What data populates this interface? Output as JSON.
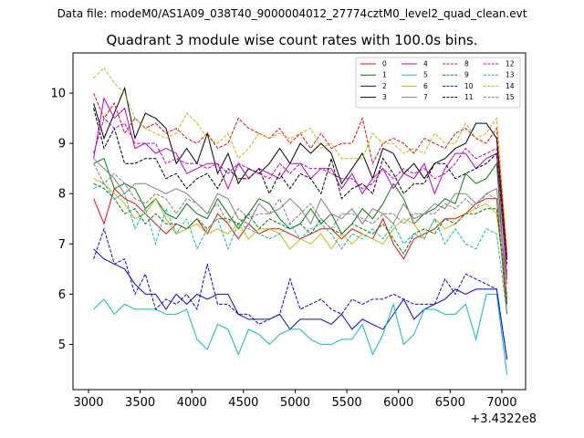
{
  "header": {
    "data_file_label": "Data file: modeM0/AS1A09_038T40_9000004012_27774cztM0_level2_quad_clean.evt"
  },
  "chart_data": {
    "type": "line",
    "title": "Quadrant 3 module wise count rates with 100.0s bins.",
    "xlabel": "",
    "ylabel": "",
    "x_offset_label": "+3.4322e8",
    "xlim": [
      2850,
      7230
    ],
    "ylim": [
      4.1,
      10.8
    ],
    "x_ticks": [
      3000,
      3500,
      4000,
      4500,
      5000,
      5500,
      6000,
      6500,
      7000
    ],
    "y_ticks": [
      5,
      6,
      7,
      8,
      9,
      10
    ],
    "x": [
      3050,
      3150,
      3250,
      3350,
      3450,
      3550,
      3650,
      3750,
      3850,
      3950,
      4050,
      4150,
      4250,
      4350,
      4450,
      4550,
      4650,
      4750,
      4850,
      4950,
      5050,
      5150,
      5250,
      5350,
      5450,
      5550,
      5650,
      5750,
      5850,
      5950,
      6050,
      6150,
      6250,
      6350,
      6450,
      6550,
      6650,
      6750,
      6850,
      6950,
      7050
    ],
    "legend_position": "top-right",
    "series": [
      {
        "name": "0",
        "color": "#ff0000",
        "dash": "solid",
        "values": [
          7.9,
          7.4,
          8.1,
          7.9,
          7.8,
          7.6,
          7.4,
          7.2,
          7.4,
          7.3,
          7.5,
          7.2,
          7.6,
          7.4,
          7.1,
          7.4,
          7.2,
          7.3,
          7.3,
          7.2,
          7.1,
          7.2,
          7.3,
          7.3,
          7.1,
          7.3,
          7.2,
          7.1,
          7.5,
          7.0,
          6.7,
          7.1,
          7.2,
          7.3,
          7.5,
          7.5,
          7.6,
          7.8,
          7.9,
          7.9,
          5.6
        ]
      },
      {
        "name": "1",
        "color": "#008000",
        "dash": "solid",
        "values": [
          8.6,
          8.7,
          8.1,
          8.2,
          8.1,
          7.7,
          7.9,
          7.6,
          7.5,
          7.8,
          7.6,
          7.5,
          7.9,
          7.6,
          7.3,
          7.6,
          7.9,
          7.8,
          7.5,
          7.3,
          7.4,
          7.7,
          7.4,
          7.6,
          7.2,
          7.4,
          7.7,
          7.5,
          7.8,
          8.2,
          7.9,
          7.4,
          7.6,
          7.7,
          7.9,
          7.8,
          8.4,
          8.2,
          8.3,
          8.6,
          5.8
        ]
      },
      {
        "name": "2",
        "color": "#0000ff",
        "dash": "solid",
        "values": [
          6.9,
          6.7,
          6.6,
          6.5,
          6.2,
          6.0,
          6.0,
          5.7,
          6.0,
          5.8,
          6.0,
          5.9,
          6.0,
          6.0,
          5.6,
          5.5,
          5.5,
          5.5,
          5.6,
          5.3,
          5.5,
          5.5,
          5.5,
          5.4,
          5.6,
          5.3,
          5.5,
          5.4,
          5.3,
          5.6,
          5.9,
          5.5,
          5.7,
          5.8,
          5.9,
          6.1,
          6.0,
          6.1,
          6.1,
          6.1,
          4.7
        ]
      },
      {
        "name": "3",
        "color": "#000000",
        "dash": "solid",
        "values": [
          9.8,
          9.1,
          9.6,
          10.1,
          9.1,
          9.6,
          9.5,
          9.3,
          8.6,
          8.9,
          8.6,
          9.2,
          8.4,
          8.8,
          8.2,
          8.5,
          8.4,
          8.6,
          8.9,
          8.6,
          9.0,
          8.8,
          9.0,
          8.8,
          8.2,
          8.5,
          8.8,
          8.3,
          8.9,
          8.8,
          8.4,
          8.6,
          8.3,
          8.6,
          8.7,
          8.9,
          9.0,
          9.4,
          9.4,
          9.1,
          6.7
        ]
      },
      {
        "name": "4",
        "color": "#c000c0",
        "dash": "solid",
        "values": [
          8.7,
          9.9,
          9.5,
          9.7,
          8.9,
          9.0,
          8.8,
          8.9,
          8.8,
          8.4,
          8.5,
          8.6,
          8.6,
          8.1,
          8.6,
          8.3,
          8.5,
          8.4,
          8.3,
          8.6,
          8.6,
          8.3,
          8.5,
          8.5,
          8.1,
          8.4,
          8.0,
          8.3,
          8.5,
          8.1,
          8.4,
          8.3,
          8.6,
          8.0,
          8.5,
          8.8,
          8.8,
          8.5,
          8.7,
          8.8,
          6.3
        ]
      },
      {
        "name": "5",
        "color": "#00bfbf",
        "dash": "solid",
        "values": [
          5.7,
          5.9,
          5.6,
          5.8,
          5.7,
          5.7,
          5.7,
          5.6,
          5.6,
          5.7,
          5.1,
          4.9,
          5.4,
          5.3,
          4.8,
          5.3,
          5.2,
          5.0,
          5.2,
          5.3,
          5.3,
          5.1,
          5.0,
          5.0,
          5.1,
          5.1,
          5.4,
          4.8,
          5.2,
          5.8,
          5.0,
          5.2,
          5.7,
          5.7,
          5.6,
          5.6,
          5.8,
          5.1,
          6.0,
          6.0,
          4.4
        ]
      },
      {
        "name": "6",
        "color": "#bfbf00",
        "dash": "solid",
        "values": [
          8.3,
          8.2,
          8.0,
          7.8,
          7.5,
          7.6,
          7.9,
          7.5,
          7.2,
          7.3,
          7.4,
          7.2,
          7.3,
          7.2,
          7.4,
          7.1,
          7.3,
          7.3,
          7.2,
          6.9,
          7.1,
          7.0,
          7.2,
          6.9,
          7.2,
          7.0,
          7.2,
          7.1,
          7.0,
          7.3,
          7.5,
          7.4,
          7.1,
          7.5,
          7.3,
          7.4,
          7.6,
          7.7,
          7.8,
          7.6,
          6.0
        ]
      },
      {
        "name": "7",
        "color": "#808080",
        "dash": "solid",
        "values": [
          8.7,
          8.5,
          8.3,
          8.0,
          8.2,
          8.2,
          8.1,
          8.0,
          8.1,
          8.0,
          7.8,
          7.6,
          8.0,
          7.9,
          7.5,
          7.4,
          7.8,
          7.6,
          7.7,
          7.9,
          7.7,
          7.4,
          7.9,
          7.6,
          7.5,
          7.7,
          7.4,
          7.7,
          7.6,
          7.4,
          7.8,
          7.5,
          7.6,
          7.8,
          7.7,
          8.0,
          8.0,
          7.8,
          8.0,
          8.1,
          6.2
        ]
      },
      {
        "name": "8",
        "color": "#ff0000",
        "dash": "dashed",
        "values": [
          10.0,
          9.5,
          9.8,
          9.2,
          9.5,
          9.3,
          9.4,
          9.2,
          9.3,
          9.1,
          9.0,
          9.2,
          8.9,
          9.0,
          9.5,
          9.3,
          9.2,
          9.1,
          9.3,
          9.0,
          9.2,
          8.9,
          9.2,
          8.9,
          9.0,
          9.0,
          9.5,
          8.6,
          9.0,
          9.1,
          9.0,
          8.8,
          9.1,
          9.0,
          8.9,
          9.2,
          9.3,
          9.1,
          9.0,
          9.3,
          6.8
        ]
      },
      {
        "name": "9",
        "color": "#008000",
        "dash": "dashed",
        "values": [
          8.2,
          8.1,
          7.9,
          7.6,
          7.7,
          7.4,
          7.6,
          7.4,
          7.4,
          7.3,
          7.5,
          7.3,
          7.5,
          7.5,
          7.4,
          7.6,
          7.3,
          7.5,
          7.4,
          7.3,
          7.4,
          7.2,
          7.5,
          7.3,
          7.2,
          7.4,
          7.3,
          7.2,
          7.4,
          7.1,
          6.8,
          7.2,
          7.3,
          7.2,
          7.5,
          7.4,
          7.6,
          7.6,
          7.7,
          7.7,
          5.9
        ]
      },
      {
        "name": "10",
        "color": "#0000ff",
        "dash": "dashed",
        "values": [
          6.7,
          7.3,
          6.6,
          6.7,
          6.0,
          6.4,
          5.7,
          5.9,
          5.8,
          6.0,
          5.7,
          6.6,
          5.8,
          5.8,
          5.6,
          5.6,
          5.4,
          5.5,
          5.6,
          6.3,
          5.7,
          5.8,
          5.9,
          5.7,
          5.6,
          5.9,
          5.8,
          5.9,
          5.9,
          6.0,
          5.9,
          5.8,
          5.8,
          5.8,
          6.3,
          6.0,
          6.4,
          6.3,
          6.2,
          6.1,
          4.7
        ]
      },
      {
        "name": "11",
        "color": "#000000",
        "dash": "dashed",
        "values": [
          9.7,
          8.9,
          9.3,
          8.6,
          8.6,
          8.7,
          8.7,
          8.3,
          8.4,
          8.1,
          8.3,
          8.4,
          8.1,
          8.5,
          8.3,
          8.3,
          8.5,
          8.0,
          8.4,
          8.1,
          8.4,
          8.3,
          8.0,
          8.7,
          7.9,
          8.1,
          8.2,
          8.0,
          8.7,
          8.4,
          8.0,
          8.2,
          8.2,
          8.6,
          8.6,
          8.3,
          8.4,
          8.5,
          8.6,
          8.8,
          6.6
        ]
      },
      {
        "name": "12",
        "color": "#c000c0",
        "dash": "dashed",
        "values": [
          8.8,
          9.5,
          9.3,
          9.4,
          9.0,
          9.0,
          9.0,
          8.6,
          8.7,
          8.6,
          8.6,
          8.5,
          8.6,
          8.4,
          8.6,
          8.5,
          8.4,
          8.3,
          8.6,
          8.4,
          8.6,
          8.5,
          8.5,
          8.4,
          8.3,
          8.3,
          8.1,
          8.2,
          8.5,
          8.3,
          8.5,
          8.4,
          8.5,
          8.3,
          8.4,
          8.6,
          8.9,
          8.7,
          8.8,
          8.9,
          6.4
        ]
      },
      {
        "name": "13",
        "color": "#00bfbf",
        "dash": "dashed",
        "values": [
          8.1,
          8.2,
          7.9,
          8.0,
          7.3,
          7.7,
          7.0,
          7.7,
          7.2,
          7.5,
          6.9,
          7.3,
          7.5,
          6.9,
          7.4,
          7.3,
          7.2,
          7.1,
          7.2,
          7.4,
          7.1,
          7.3,
          7.4,
          7.2,
          6.9,
          7.2,
          7.1,
          7.3,
          7.1,
          7.4,
          7.0,
          7.2,
          7.1,
          7.5,
          7.0,
          7.3,
          7.0,
          6.9,
          7.3,
          7.2,
          5.6
        ]
      },
      {
        "name": "14",
        "color": "#bfbf00",
        "dash": "dashed",
        "values": [
          10.3,
          10.5,
          10.2,
          10.0,
          9.5,
          9.3,
          9.2,
          9.1,
          9.2,
          9.6,
          9.4,
          9.1,
          9.0,
          9.2,
          8.7,
          8.9,
          9.2,
          9.1,
          9.2,
          9.1,
          9.2,
          9.3,
          8.9,
          9.0,
          8.7,
          8.7,
          8.7,
          9.2,
          9.0,
          9.0,
          8.8,
          8.9,
          8.8,
          9.2,
          9.0,
          9.0,
          9.4,
          9.1,
          9.2,
          9.5,
          6.9
        ]
      },
      {
        "name": "15",
        "color": "#808080",
        "dash": "dashed",
        "values": [
          8.6,
          8.2,
          8.4,
          8.2,
          7.9,
          7.8,
          8.0,
          7.9,
          7.6,
          7.9,
          7.8,
          7.6,
          7.8,
          7.4,
          7.7,
          7.5,
          7.6,
          7.6,
          7.9,
          7.4,
          7.6,
          7.8,
          7.5,
          7.3,
          7.6,
          7.6,
          7.5,
          7.4,
          7.6,
          7.6,
          7.4,
          7.6,
          7.6,
          7.6,
          7.8,
          7.7,
          7.9,
          7.7,
          8.0,
          7.9,
          6.0
        ]
      }
    ]
  }
}
